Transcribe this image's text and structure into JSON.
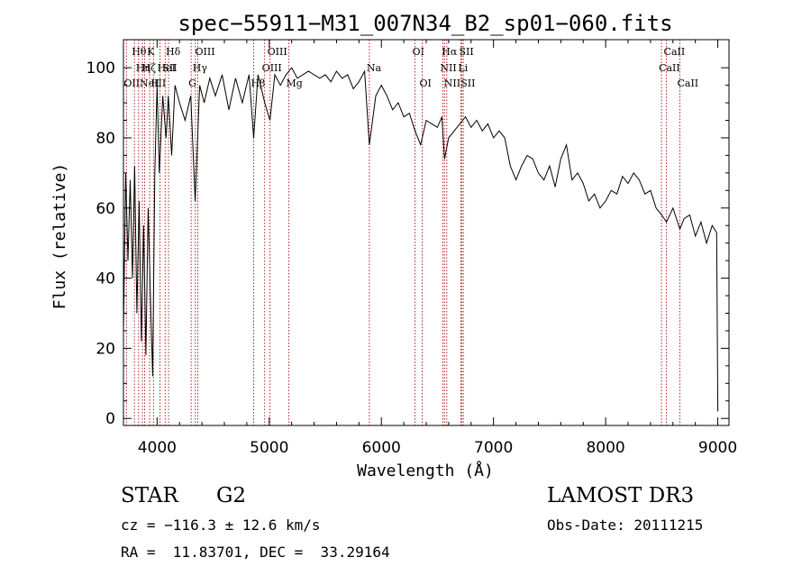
{
  "chart_data": {
    "type": "line",
    "title": "spec−55911−M31_007N34_B2_sp01−060.fits",
    "xlabel": "Wavelength (Å)",
    "ylabel": "Flux (relative)",
    "xlim": [
      3700,
      9100
    ],
    "ylim": [
      -2,
      108
    ],
    "xticks": [
      4000,
      5000,
      6000,
      7000,
      8000,
      9000
    ],
    "yticks": [
      0,
      20,
      40,
      60,
      80,
      100
    ],
    "series": [
      {
        "name": "flux",
        "x": [
          3700,
          3720,
          3740,
          3760,
          3780,
          3800,
          3820,
          3840,
          3860,
          3880,
          3900,
          3920,
          3940,
          3960,
          3980,
          4000,
          4020,
          4050,
          4080,
          4100,
          4130,
          4160,
          4200,
          4250,
          4300,
          4340,
          4380,
          4420,
          4470,
          4520,
          4580,
          4640,
          4700,
          4760,
          4820,
          4861,
          4900,
          4960,
          5007,
          5050,
          5100,
          5150,
          5200,
          5250,
          5300,
          5350,
          5400,
          5450,
          5500,
          5550,
          5600,
          5650,
          5700,
          5750,
          5800,
          5850,
          5893,
          5950,
          6000,
          6050,
          6100,
          6150,
          6200,
          6250,
          6300,
          6350,
          6400,
          6450,
          6500,
          6540,
          6563,
          6600,
          6650,
          6700,
          6750,
          6800,
          6850,
          6900,
          6950,
          7000,
          7050,
          7100,
          7150,
          7200,
          7250,
          7300,
          7350,
          7400,
          7450,
          7500,
          7550,
          7600,
          7650,
          7700,
          7750,
          7800,
          7850,
          7900,
          7950,
          8000,
          8050,
          8100,
          8150,
          8200,
          8250,
          8300,
          8350,
          8400,
          8450,
          8500,
          8542,
          8600,
          8662,
          8700,
          8750,
          8800,
          8850,
          8900,
          8950,
          8990,
          9000
        ],
        "y": [
          25,
          70,
          45,
          68,
          40,
          72,
          30,
          62,
          22,
          55,
          18,
          60,
          35,
          12,
          70,
          95,
          70,
          92,
          80,
          92,
          75,
          95,
          90,
          85,
          92,
          62,
          95,
          90,
          97,
          92,
          98,
          88,
          97,
          90,
          98,
          80,
          98,
          90,
          85,
          98,
          95,
          98,
          100,
          97,
          98,
          99,
          98,
          97,
          98,
          96,
          99,
          97,
          98,
          94,
          96,
          99,
          78,
          92,
          95,
          92,
          88,
          90,
          86,
          87,
          82,
          78,
          85,
          84,
          83,
          86,
          74,
          80,
          82,
          84,
          86,
          83,
          85,
          82,
          84,
          80,
          82,
          80,
          72,
          68,
          72,
          75,
          74,
          70,
          68,
          72,
          66,
          74,
          78,
          68,
          70,
          67,
          62,
          64,
          60,
          62,
          65,
          64,
          69,
          67,
          70,
          68,
          64,
          65,
          60,
          58,
          56,
          60,
          54,
          57,
          58,
          52,
          56,
          50,
          55,
          53,
          2
        ]
      }
    ],
    "lines": [
      {
        "x": 3727,
        "label": "OII",
        "row": 2
      },
      {
        "x": 3798,
        "label": "Hθ",
        "row": 0
      },
      {
        "x": 3835,
        "label": "Hη",
        "row": 1
      },
      {
        "x": 3869,
        "label": "NeIII",
        "row": 2
      },
      {
        "x": 3889,
        "label": "Hζ",
        "row": 1
      },
      {
        "x": 3934,
        "label": "K",
        "row": 0
      },
      {
        "x": 3968,
        "label": "H",
        "row": 2
      },
      {
        "x": 4026,
        "label": "HeI",
        "row": 1
      },
      {
        "x": 4072,
        "label": "SII",
        "row": 1
      },
      {
        "x": 4102,
        "label": "Hδ",
        "row": 0
      },
      {
        "x": 4304,
        "label": "G",
        "row": 2
      },
      {
        "x": 4341,
        "label": "Hγ",
        "row": 1
      },
      {
        "x": 4363,
        "label": "OIII",
        "row": 0
      },
      {
        "x": 4861,
        "label": "Hβ",
        "row": 2
      },
      {
        "x": 4959,
        "label": "OIII",
        "row": 1
      },
      {
        "x": 5007,
        "label": "OIII",
        "row": 0
      },
      {
        "x": 5175,
        "label": "Mg",
        "row": 2
      },
      {
        "x": 5893,
        "label": "Na",
        "row": 1
      },
      {
        "x": 6300,
        "label": "OI",
        "row": 0
      },
      {
        "x": 6364,
        "label": "OI",
        "row": 2
      },
      {
        "x": 6548,
        "label": "NII",
        "row": 1
      },
      {
        "x": 6563,
        "label": "Hα",
        "row": 0
      },
      {
        "x": 6583,
        "label": "NII",
        "row": 2
      },
      {
        "x": 6708,
        "label": "Li",
        "row": 1
      },
      {
        "x": 6717,
        "label": "SII",
        "row": 0
      },
      {
        "x": 6731,
        "label": "SII",
        "row": 2
      },
      {
        "x": 8498,
        "label": "CaII",
        "row": 1
      },
      {
        "x": 8542,
        "label": "CaII",
        "row": 0
      },
      {
        "x": 8662,
        "label": "CaII",
        "row": 2
      }
    ]
  },
  "info": {
    "class_label": "STAR",
    "subclass": "G2",
    "survey": "LAMOST DR3",
    "cz": "cz = −116.3 ± 12.6 km/s",
    "obs_date": "Obs-Date: 20111215",
    "coords": "RA =  11.83701, DEC =  33.29164"
  }
}
